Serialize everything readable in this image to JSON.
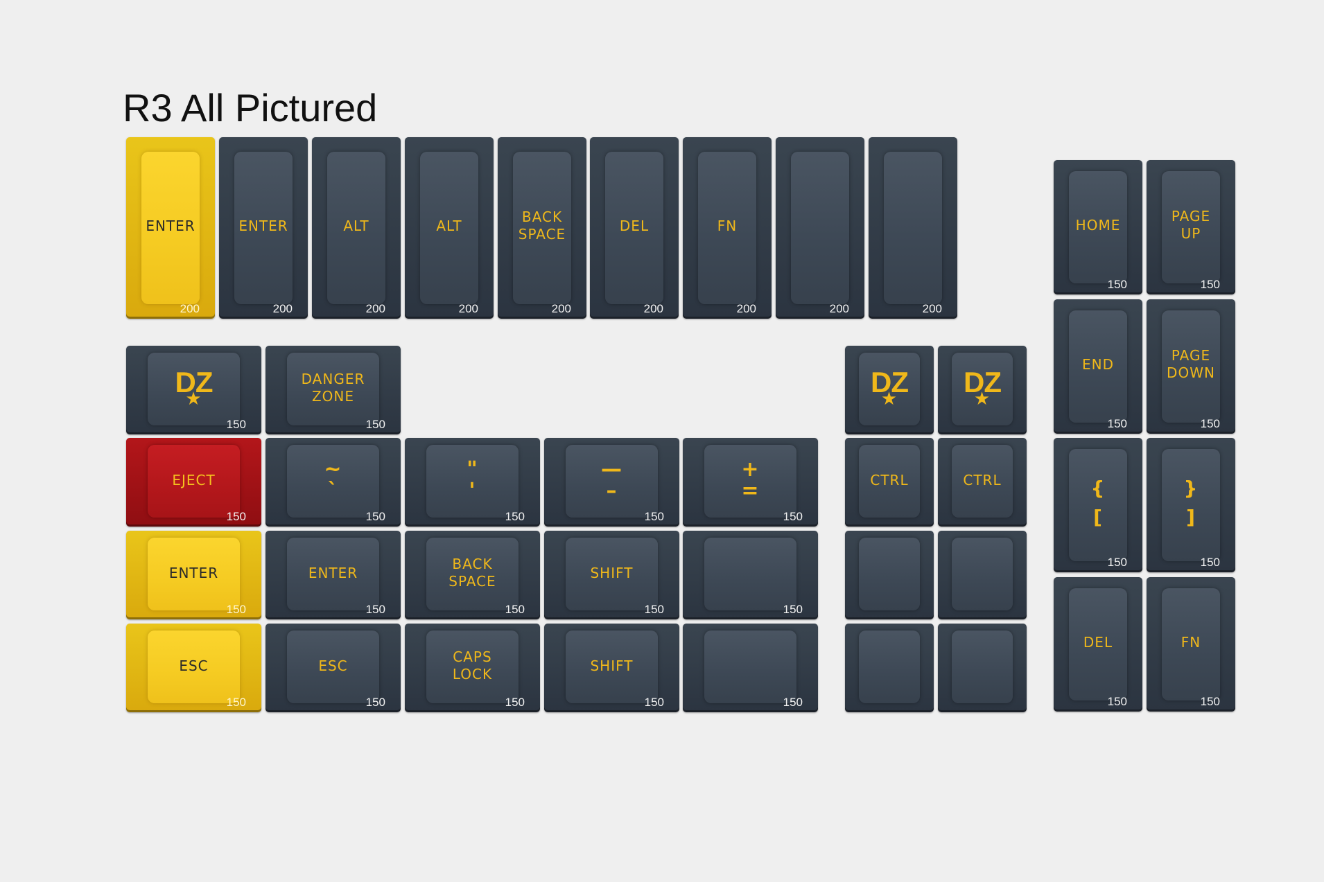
{
  "title": "R3 All Pictured",
  "keys": [
    {
      "legend": "ENTER",
      "size": "200",
      "color": "yellow"
    },
    {
      "legend": "ENTER",
      "size": "200",
      "color": "gray"
    },
    {
      "legend": "ALT",
      "size": "200",
      "color": "gray"
    },
    {
      "legend": "ALT",
      "size": "200",
      "color": "gray"
    },
    {
      "legend": "BACK\nSPACE",
      "size": "200",
      "color": "gray"
    },
    {
      "legend": "DEL",
      "size": "200",
      "color": "gray"
    },
    {
      "legend": "FN",
      "size": "200",
      "color": "gray"
    },
    {
      "legend": "",
      "size": "200",
      "color": "gray"
    },
    {
      "legend": "",
      "size": "200",
      "color": "gray"
    },
    {
      "legend": "HOME",
      "size": "150",
      "color": "gray"
    },
    {
      "legend": "PAGE\nUP",
      "size": "150",
      "color": "gray"
    },
    {
      "legend": "END",
      "size": "150",
      "color": "gray"
    },
    {
      "legend": "PAGE\nDOWN",
      "size": "150",
      "color": "gray"
    },
    {
      "legend": "{\n[",
      "size": "150",
      "color": "gray",
      "style": "brace"
    },
    {
      "legend": "}\n]",
      "size": "150",
      "color": "gray",
      "style": "brace"
    },
    {
      "legend": "DEL",
      "size": "150",
      "color": "gray"
    },
    {
      "legend": "FN",
      "size": "150",
      "color": "gray"
    },
    {
      "legend": "DZ",
      "size": "150",
      "color": "gray",
      "style": "logo"
    },
    {
      "legend": "DANGER\nZONE",
      "size": "150",
      "color": "gray"
    },
    {
      "legend": "EJECT",
      "size": "150",
      "color": "red"
    },
    {
      "legend": "~\n`",
      "size": "150",
      "color": "gray",
      "style": "sym"
    },
    {
      "legend": "\"\n'",
      "size": "150",
      "color": "gray",
      "style": "sym"
    },
    {
      "legend": "—\n–",
      "size": "150",
      "color": "gray",
      "style": "sym"
    },
    {
      "legend": "+\n=",
      "size": "150",
      "color": "gray",
      "style": "sym"
    },
    {
      "legend": "ENTER",
      "size": "150",
      "color": "yellow"
    },
    {
      "legend": "ENTER",
      "size": "150",
      "color": "gray"
    },
    {
      "legend": "BACK\nSPACE",
      "size": "150",
      "color": "gray"
    },
    {
      "legend": "SHIFT",
      "size": "150",
      "color": "gray"
    },
    {
      "legend": "",
      "size": "150",
      "color": "gray"
    },
    {
      "legend": "ESC",
      "size": "150",
      "color": "yellow"
    },
    {
      "legend": "ESC",
      "size": "150",
      "color": "gray"
    },
    {
      "legend": "CAPS\nLOCK",
      "size": "150",
      "color": "gray"
    },
    {
      "legend": "SHIFT",
      "size": "150",
      "color": "gray"
    },
    {
      "legend": "",
      "size": "150",
      "color": "gray"
    },
    {
      "legend": "DZ",
      "size": "",
      "color": "gray",
      "style": "logo"
    },
    {
      "legend": "DZ",
      "size": "",
      "color": "gray",
      "style": "logo"
    },
    {
      "legend": "CTRL",
      "size": "",
      "color": "gray"
    },
    {
      "legend": "CTRL",
      "size": "",
      "color": "gray"
    },
    {
      "legend": "",
      "size": "",
      "color": "gray"
    },
    {
      "legend": "",
      "size": "",
      "color": "gray"
    },
    {
      "legend": "",
      "size": "",
      "color": "gray"
    },
    {
      "legend": "",
      "size": "",
      "color": "gray"
    }
  ]
}
